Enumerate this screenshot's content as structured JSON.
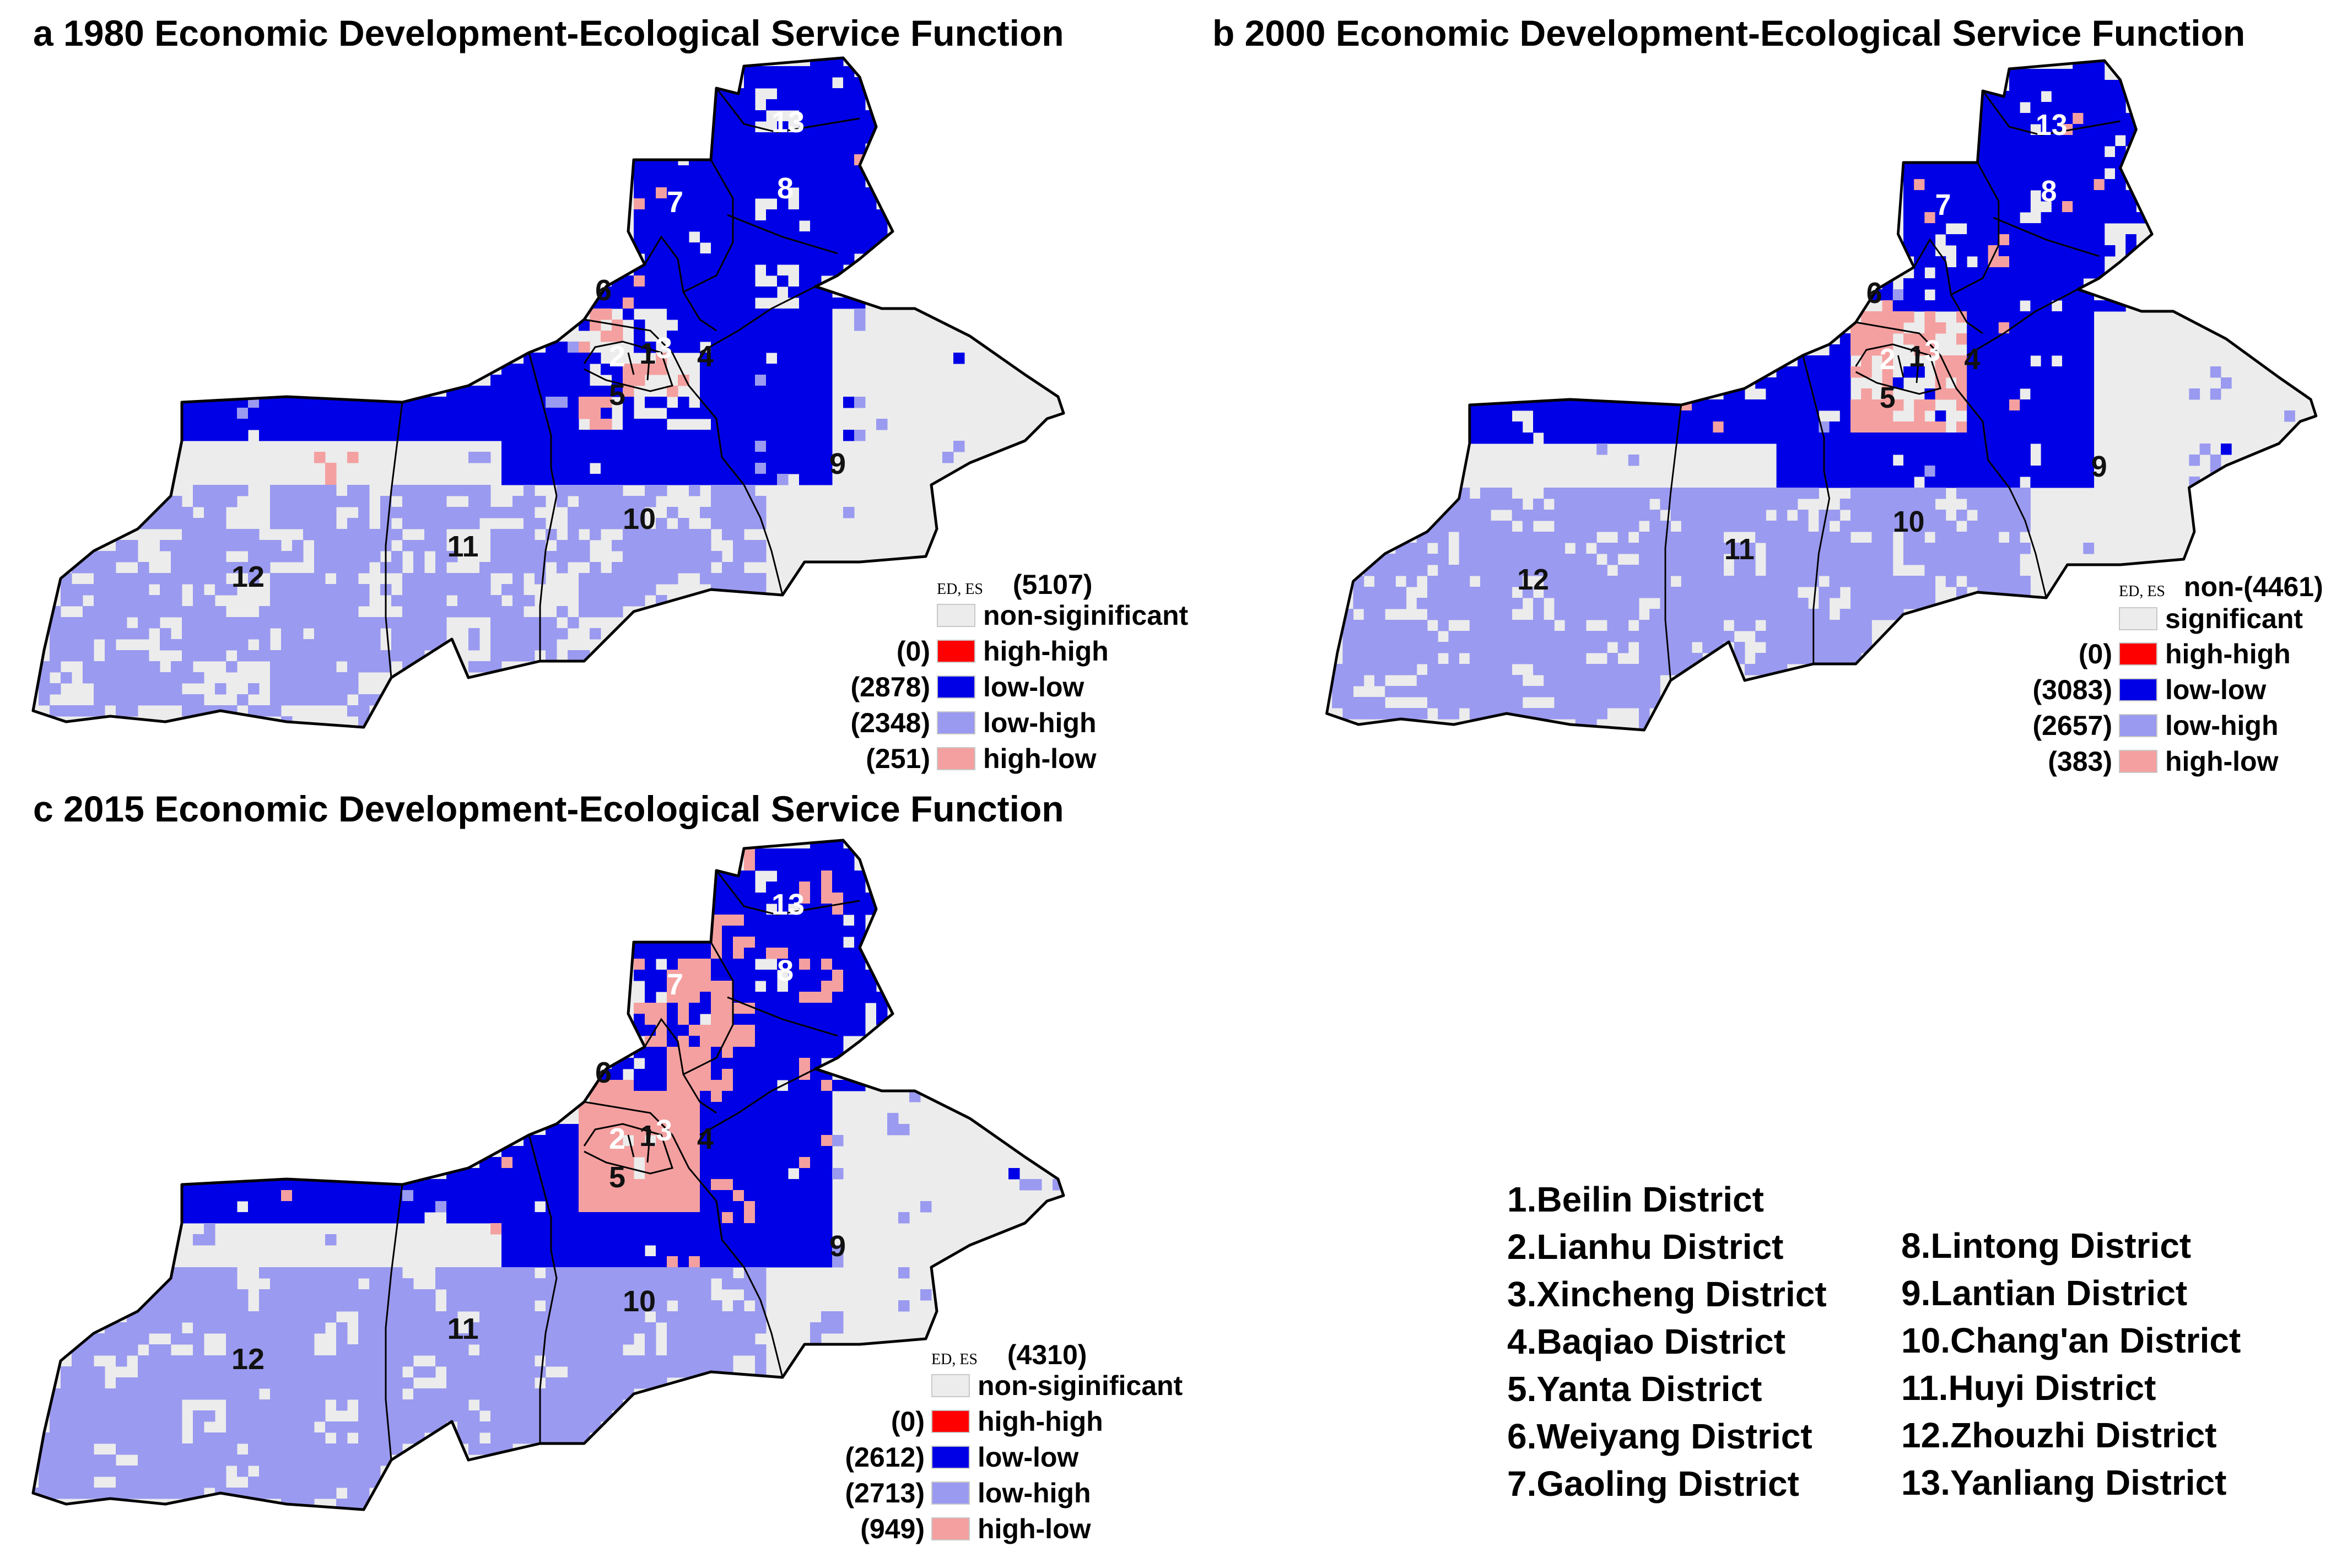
{
  "panels": [
    {
      "title": "a 1980 Economic Development-Ecological Service Function",
      "legend": {
        "header": "ED, ES",
        "nonsig_count": "(5107)",
        "nonsig_label": "non-siginificant",
        "rows": [
          {
            "count": "(0)",
            "label": "high-high"
          },
          {
            "count": "(2878)",
            "label": "low-low"
          },
          {
            "count": "(2348)",
            "label": "low-high"
          },
          {
            "count": "(251)",
            "label": "high-low"
          }
        ]
      },
      "district_labels": [
        "1",
        "2",
        "3",
        "4",
        "5",
        "6",
        "7",
        "8",
        "9",
        "10",
        "11",
        "12",
        "13"
      ]
    },
    {
      "title": "b 2000 Economic Development-Ecological Service Function",
      "legend": {
        "header": "ED, ES",
        "nonsig_count": "non-(4461)",
        "nonsig_label": "significant",
        "rows": [
          {
            "count": "(0)",
            "label": "high-high"
          },
          {
            "count": "(3083)",
            "label": "low-low"
          },
          {
            "count": "(2657)",
            "label": "low-high"
          },
          {
            "count": "(383)",
            "label": "high-low"
          }
        ]
      },
      "district_labels": [
        "1",
        "2",
        "3",
        "4",
        "5",
        "6",
        "7",
        "8",
        "9",
        "10",
        "11",
        "12",
        "13"
      ]
    },
    {
      "title": "c 2015 Economic Development-Ecological Service Function",
      "legend": {
        "header": "ED, ES",
        "nonsig_count": "(4310)",
        "nonsig_label": "non-siginificant",
        "rows": [
          {
            "count": "(0)",
            "label": "high-high"
          },
          {
            "count": "(2612)",
            "label": "low-low"
          },
          {
            "count": "(2713)",
            "label": "low-high"
          },
          {
            "count": "(949)",
            "label": "high-low"
          }
        ]
      },
      "district_labels": [
        "1",
        "2",
        "3",
        "4",
        "5",
        "6",
        "7",
        "8",
        "9",
        "10",
        "11",
        "12",
        "13"
      ]
    }
  ],
  "colors": {
    "non_significant": "#ececec",
    "high_high": "#ff0000",
    "low_low": "#0000e6",
    "low_high": "#9a9af0",
    "high_low": "#f4a0a0",
    "boundary": "#000000"
  },
  "district_list": {
    "left": [
      "1.Beilin District",
      "2.Lianhu District",
      "3.Xincheng District",
      "4.Baqiao District",
      "5.Yanta District",
      "6.Weiyang District",
      "7.Gaoling District"
    ],
    "right": [
      "8.Lintong District",
      "9.Lantian District",
      "10.Chang'an District",
      "11.Huyi District",
      "12.Zhouzhi District",
      "13.Yanliang District"
    ]
  }
}
